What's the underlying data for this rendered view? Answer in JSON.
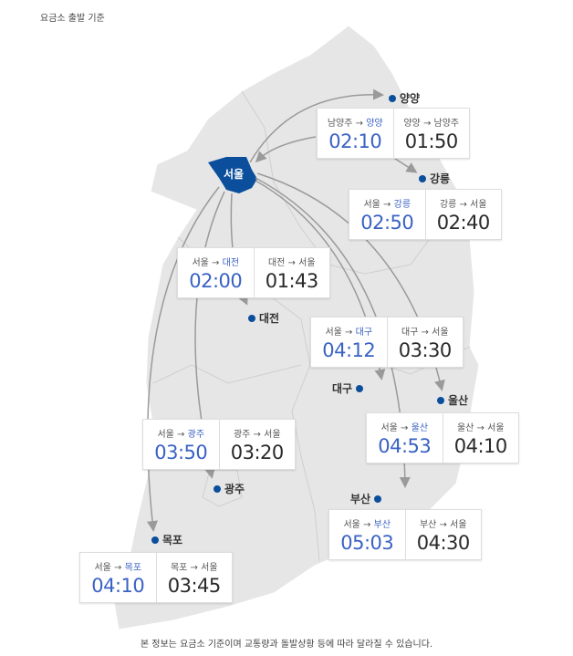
{
  "caption": "요금소 출발 기준",
  "footer": "본 정보는 요금소 기준이며 교통량과 돌발상황 등에 따라 달라질 수 있습니다.",
  "colors": {
    "map_fill": "#e6e6e6",
    "seoul_fill": "#0b4f9c",
    "outbound_time": "#3a62c4",
    "return_time": "#2a2a2a",
    "arrow": "#9a9a9a"
  },
  "origin": "서울",
  "arrow_symbol": "→",
  "cities": [
    {
      "name": "양양",
      "origin": "남양주",
      "outbound": "02:10",
      "return": "01:50"
    },
    {
      "name": "강릉",
      "origin": "서울",
      "outbound": "02:50",
      "return": "02:40"
    },
    {
      "name": "대전",
      "origin": "서울",
      "outbound": "02:00",
      "return": "01:43"
    },
    {
      "name": "대구",
      "origin": "서울",
      "outbound": "04:12",
      "return": "03:30"
    },
    {
      "name": "울산",
      "origin": "서울",
      "outbound": "04:53",
      "return": "04:10"
    },
    {
      "name": "광주",
      "origin": "서울",
      "outbound": "03:50",
      "return": "03:20"
    },
    {
      "name": "부산",
      "origin": "서울",
      "outbound": "05:03",
      "return": "04:30"
    },
    {
      "name": "목포",
      "origin": "서울",
      "outbound": "04:10",
      "return": "03:45"
    }
  ]
}
